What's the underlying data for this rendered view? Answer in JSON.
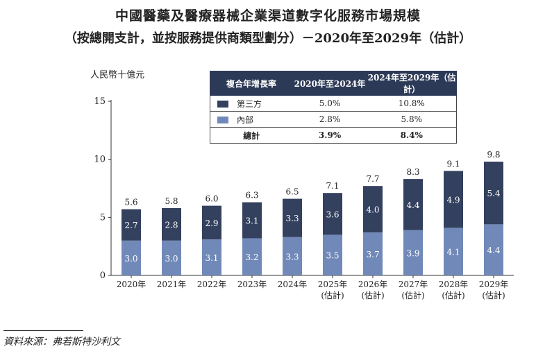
{
  "title": {
    "line1": "中國醫藥及醫療器械企業渠道數字化服務市場規模",
    "line2": "（按總開支計，並按服務提供商類型劃分）－2020年至2029年（估計）"
  },
  "colors": {
    "external": "#33405e",
    "internal": "#7189b8"
  },
  "legend": {
    "header": [
      "複合年增長率",
      "2020年至2024年",
      "2024年至2029年（估計）"
    ],
    "rows": [
      {
        "label": "第三方",
        "cagr1": "5.0%",
        "cagr2": "10.8%"
      },
      {
        "label": "內部",
        "cagr1": "2.8%",
        "cagr2": "5.8%"
      },
      {
        "label": "總計",
        "cagr1": "3.9%",
        "cagr2": "8.4%"
      }
    ]
  },
  "chart_data": {
    "type": "bar",
    "stacked": true,
    "ylabel": "人民幣十億元",
    "ylim": [
      0,
      15
    ],
    "yticks": [
      0,
      5,
      10,
      15
    ],
    "categories": [
      [
        "2020年"
      ],
      [
        "2021年"
      ],
      [
        "2022年"
      ],
      [
        "2023年"
      ],
      [
        "2024年"
      ],
      [
        "2025年",
        "(估計)"
      ],
      [
        "2026年",
        "(估計)"
      ],
      [
        "2027年",
        "(估計)"
      ],
      [
        "2028年",
        "(估計)"
      ],
      [
        "2029年",
        "(估計)"
      ]
    ],
    "series": [
      {
        "name": "內部",
        "values": [
          3.0,
          3.0,
          3.1,
          3.2,
          3.3,
          3.5,
          3.7,
          3.9,
          4.1,
          4.4
        ],
        "labels": [
          "3.0",
          "3.0",
          "3.1",
          "3.2",
          "3.3",
          "3.5",
          "3.7",
          "3.9",
          "4.1",
          "4.4"
        ]
      },
      {
        "name": "第三方",
        "values": [
          2.7,
          2.8,
          2.9,
          3.1,
          3.3,
          3.6,
          4.0,
          4.4,
          4.9,
          5.4
        ],
        "labels": [
          "2.7",
          "2.8",
          "2.9",
          "3.1",
          "3.3",
          "3.6",
          "4.0",
          "4.4",
          "4.9",
          "5.4"
        ]
      }
    ],
    "totals": [
      "5.6",
      "5.8",
      "6.0",
      "6.3",
      "6.5",
      "7.1",
      "7.7",
      "8.3",
      "9.1",
      "9.8"
    ]
  },
  "source": "資料來源：弗若斯特沙利文"
}
